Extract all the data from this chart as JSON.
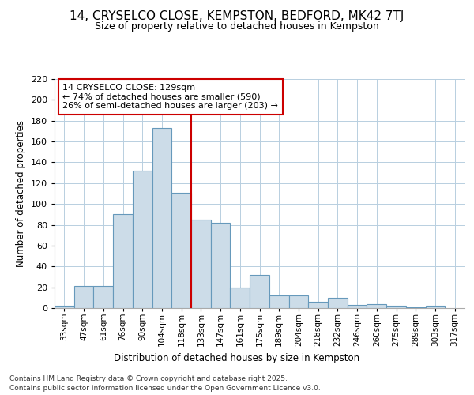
{
  "title": "14, CRYSELCO CLOSE, KEMPSTON, BEDFORD, MK42 7TJ",
  "subtitle": "Size of property relative to detached houses in Kempston",
  "xlabel": "Distribution of detached houses by size in Kempston",
  "ylabel": "Number of detached properties",
  "bar_values": [
    2,
    21,
    21,
    90,
    132,
    173,
    111,
    85,
    82,
    20,
    32,
    12,
    12,
    6,
    10,
    3,
    4,
    2,
    1,
    2
  ],
  "bar_labels": [
    "33sqm",
    "47sqm",
    "61sqm",
    "76sqm",
    "90sqm",
    "104sqm",
    "118sqm",
    "133sqm",
    "147sqm",
    "161sqm",
    "175sqm",
    "189sqm",
    "204sqm",
    "218sqm",
    "232sqm",
    "246sqm",
    "260sqm",
    "275sqm",
    "289sqm",
    "303sqm",
    "317sqm"
  ],
  "bar_color": "#ccdce8",
  "bar_edge_color": "#6699bb",
  "vline_color": "#cc0000",
  "annotation_title": "14 CRYSELCO CLOSE: 129sqm",
  "annotation_line1": "← 74% of detached houses are smaller (590)",
  "annotation_line2": "26% of semi-detached houses are larger (203) →",
  "annotation_box_color": "#cc0000",
  "annotation_bg": "#ffffff",
  "ylim": [
    0,
    220
  ],
  "yticks": [
    0,
    20,
    40,
    60,
    80,
    100,
    120,
    140,
    160,
    180,
    200,
    220
  ],
  "grid_color": "#b8cfe0",
  "bg_color": "#ffffff",
  "footer1": "Contains HM Land Registry data © Crown copyright and database right 2025.",
  "footer2": "Contains public sector information licensed under the Open Government Licence v3.0."
}
